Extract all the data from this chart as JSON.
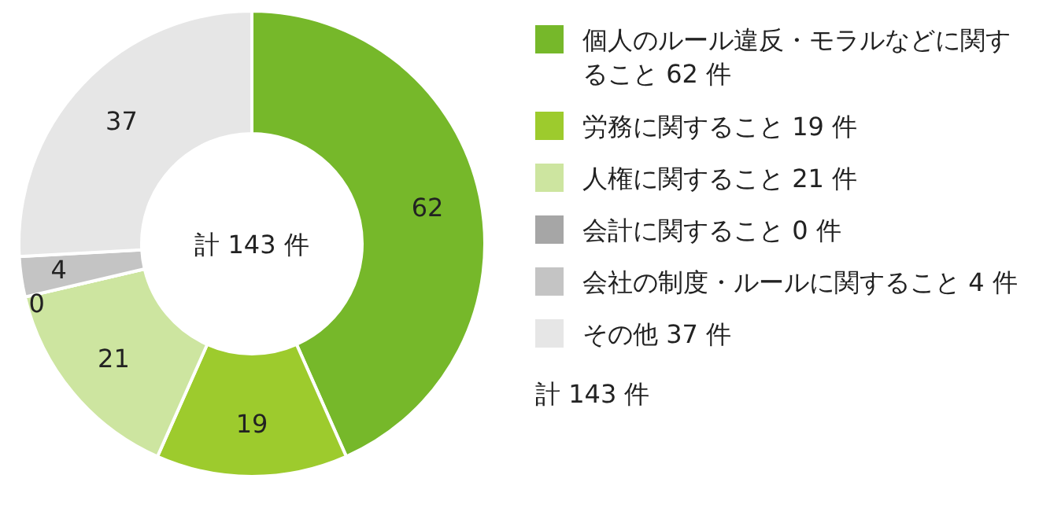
{
  "chart_data": {
    "type": "donut",
    "categories": [
      "個人のルール違反・モラルなどに関すること  62 件",
      "労務に関すること  19 件",
      "人権に関すること  21 件",
      "会計に関すること  0 件",
      "会社の制度・ルールに関すること  4 件",
      "その他  37 件"
    ],
    "values": [
      62,
      19,
      21,
      0,
      4,
      37
    ],
    "colors": [
      "#76b82a",
      "#9dcb2d",
      "#cde5a0",
      "#a6a6a6",
      "#c4c4c4",
      "#e6e6e6"
    ],
    "value_labels": [
      "62",
      "19",
      "21",
      "0",
      "4",
      "37"
    ],
    "legend": "right",
    "annotations": [
      "計 143 件",
      "計 143 件"
    ]
  }
}
